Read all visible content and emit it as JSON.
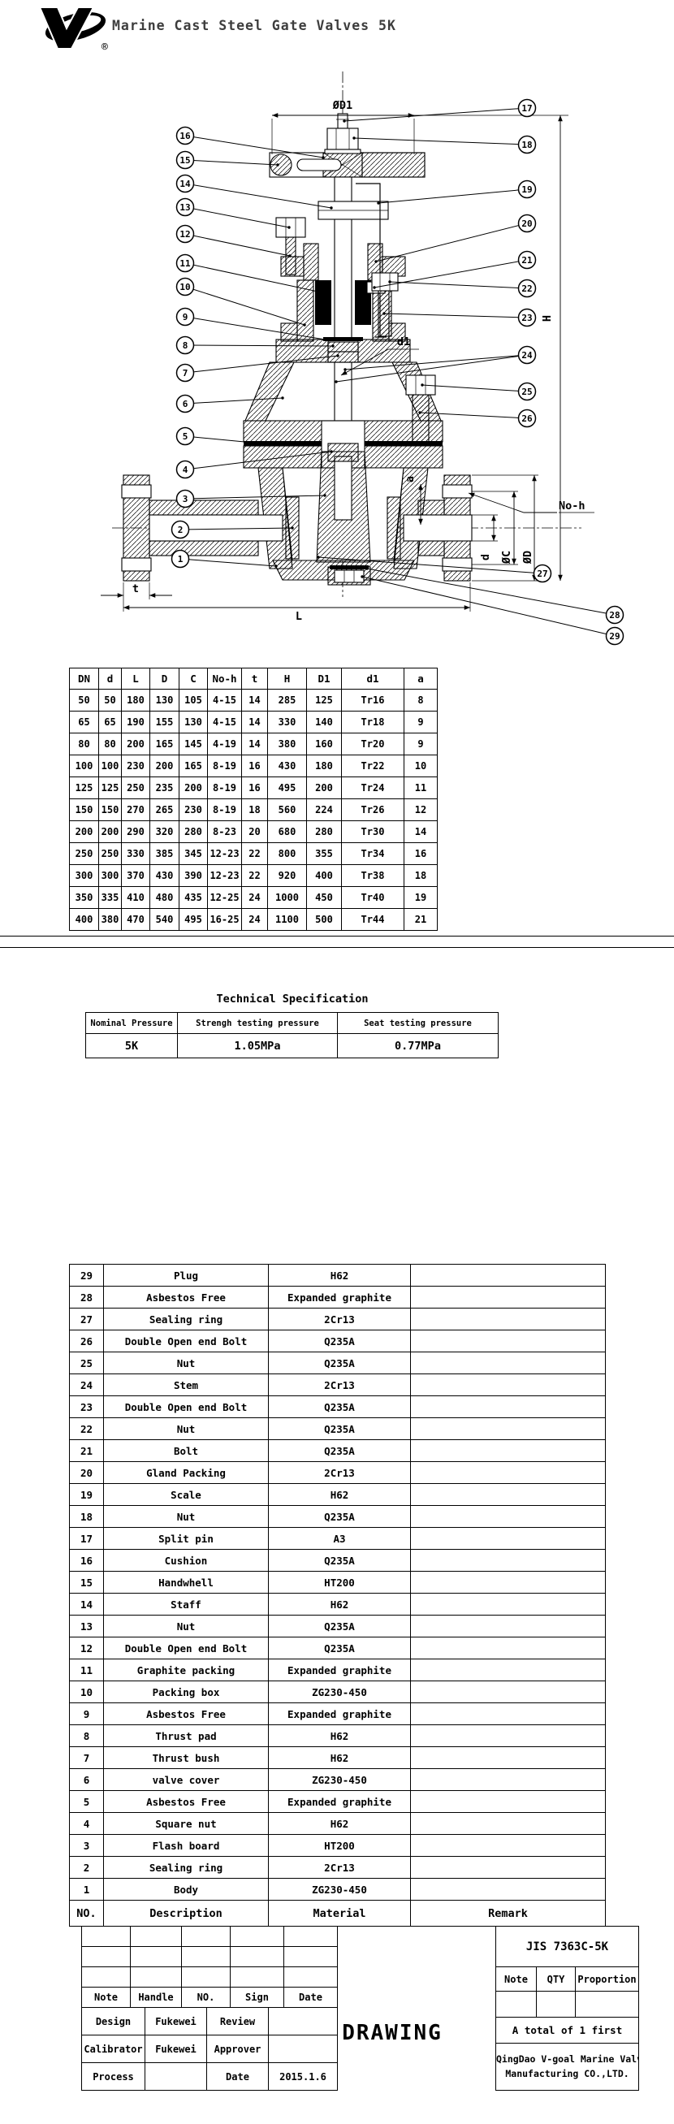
{
  "header": {
    "title": "Marine Cast Steel Gate Valves 5K",
    "registered_mark": "®"
  },
  "diagram": {
    "callout_labels": [
      "1",
      "2",
      "3",
      "4",
      "5",
      "6",
      "7",
      "8",
      "9",
      "10",
      "11",
      "12",
      "13",
      "14",
      "15",
      "16",
      "17",
      "18",
      "19",
      "20",
      "21",
      "22",
      "23",
      "24",
      "25",
      "26",
      "27",
      "28",
      "29"
    ],
    "labels": {
      "dia_d1": "ØD1",
      "h": "H",
      "d1": "d1",
      "a": "a",
      "d": "d",
      "dia_c": "ØC",
      "dia_dd": "ØD",
      "no_h": "No-h",
      "t": "t",
      "l": "L"
    }
  },
  "dim_table": {
    "headers": [
      "DN",
      "d",
      "L",
      "D",
      "C",
      "No-h",
      "t",
      "H",
      "D1",
      "d1",
      "a"
    ],
    "rows": [
      [
        "50",
        "50",
        "180",
        "130",
        "105",
        "4-15",
        "14",
        "285",
        "125",
        "Tr16",
        "8"
      ],
      [
        "65",
        "65",
        "190",
        "155",
        "130",
        "4-15",
        "14",
        "330",
        "140",
        "Tr18",
        "9"
      ],
      [
        "80",
        "80",
        "200",
        "165",
        "145",
        "4-19",
        "14",
        "380",
        "160",
        "Tr20",
        "9"
      ],
      [
        "100",
        "100",
        "230",
        "200",
        "165",
        "8-19",
        "16",
        "430",
        "180",
        "Tr22",
        "10"
      ],
      [
        "125",
        "125",
        "250",
        "235",
        "200",
        "8-19",
        "16",
        "495",
        "200",
        "Tr24",
        "11"
      ],
      [
        "150",
        "150",
        "270",
        "265",
        "230",
        "8-19",
        "18",
        "560",
        "224",
        "Tr26",
        "12"
      ],
      [
        "200",
        "200",
        "290",
        "320",
        "280",
        "8-23",
        "20",
        "680",
        "280",
        "Tr30",
        "14"
      ],
      [
        "250",
        "250",
        "330",
        "385",
        "345",
        "12-23",
        "22",
        "800",
        "355",
        "Tr34",
        "16"
      ],
      [
        "300",
        "300",
        "370",
        "430",
        "390",
        "12-23",
        "22",
        "920",
        "400",
        "Tr38",
        "18"
      ],
      [
        "350",
        "335",
        "410",
        "480",
        "435",
        "12-25",
        "24",
        "1000",
        "450",
        "Tr40",
        "19"
      ],
      [
        "400",
        "380",
        "470",
        "540",
        "495",
        "16-25",
        "24",
        "1100",
        "500",
        "Tr44",
        "21"
      ]
    ]
  },
  "tech_spec": {
    "title": "Technical Specification",
    "headers": [
      "Nominal Pressure",
      "Strengh testing pressure",
      "Seat testing pressure"
    ],
    "rows": [
      [
        "5K",
        "1.05MPa",
        "0.77MPa"
      ]
    ]
  },
  "parts": {
    "rows": [
      [
        "29",
        "Plug",
        "H62",
        ""
      ],
      [
        "28",
        "Asbestos Free",
        "Expanded graphite",
        ""
      ],
      [
        "27",
        "Sealing ring",
        "2Cr13",
        ""
      ],
      [
        "26",
        "Double Open end Bolt",
        "Q235A",
        ""
      ],
      [
        "25",
        "Nut",
        "Q235A",
        ""
      ],
      [
        "24",
        "Stem",
        "2Cr13",
        ""
      ],
      [
        "23",
        "Double Open end Bolt",
        "Q235A",
        ""
      ],
      [
        "22",
        "Nut",
        "Q235A",
        ""
      ],
      [
        "21",
        "Bolt",
        "Q235A",
        ""
      ],
      [
        "20",
        "Gland Packing",
        "2Cr13",
        ""
      ],
      [
        "19",
        "Scale",
        "H62",
        ""
      ],
      [
        "18",
        "Nut",
        "Q235A",
        ""
      ],
      [
        "17",
        "Split pin",
        "A3",
        ""
      ],
      [
        "16",
        "Cushion",
        "Q235A",
        ""
      ],
      [
        "15",
        "Handwhell",
        "HT200",
        ""
      ],
      [
        "14",
        "Staff",
        "H62",
        ""
      ],
      [
        "13",
        "Nut",
        "Q235A",
        ""
      ],
      [
        "12",
        "Double Open end Bolt",
        "Q235A",
        ""
      ],
      [
        "11",
        "Graphite packing",
        "Expanded graphite",
        ""
      ],
      [
        "10",
        "Packing box",
        "ZG230-450",
        ""
      ],
      [
        "9",
        "Asbestos Free",
        "Expanded graphite",
        ""
      ],
      [
        "8",
        "Thrust pad",
        "H62",
        ""
      ],
      [
        "7",
        "Thrust bush",
        "H62",
        ""
      ],
      [
        "6",
        "valve cover",
        "ZG230-450",
        ""
      ],
      [
        "5",
        "Asbestos Free",
        "Expanded graphite",
        ""
      ],
      [
        "4",
        "Square nut",
        "H62",
        ""
      ],
      [
        "3",
        "Flash board",
        "HT200",
        ""
      ],
      [
        "2",
        "Sealing ring",
        "2Cr13",
        ""
      ],
      [
        "1",
        "Body",
        "ZG230-450",
        ""
      ]
    ],
    "footer": [
      "NO.",
      "Description",
      "Material",
      "Remark"
    ]
  },
  "title_block": {
    "left": {
      "empty_rows": [
        [
          "",
          "",
          "",
          "",
          ""
        ],
        [
          "",
          "",
          "",
          "",
          ""
        ],
        [
          "",
          "",
          "",
          "",
          ""
        ]
      ],
      "header": [
        "Note",
        "Handle",
        "NO.",
        "Sign",
        "Date"
      ],
      "rows": [
        [
          "Design",
          "Fukewei",
          "Review",
          ""
        ],
        [
          "Calibrator",
          "Fukewei",
          "Approver",
          ""
        ],
        [
          "Process",
          "",
          "Date",
          "2015.1.6"
        ]
      ]
    },
    "drawing": "DRAWING",
    "right": {
      "code": "JIS 7363C-5K",
      "cols": [
        "Note",
        "QTY",
        "Proportion"
      ],
      "total": "A total of 1 first",
      "company1": "QingDao V-goal Marine Valve",
      "company2": "Manufacturing CO.,LTD."
    }
  }
}
